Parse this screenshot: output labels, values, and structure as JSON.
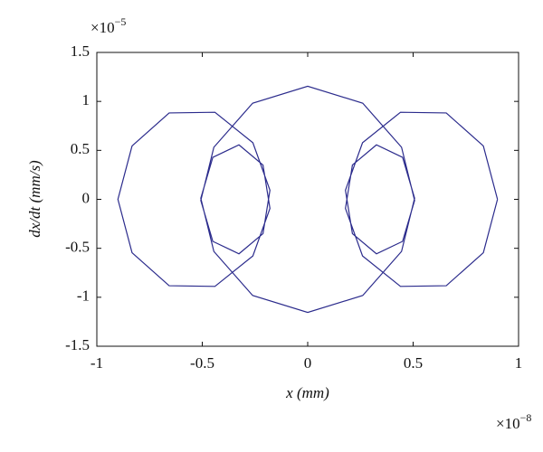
{
  "chart_data": {
    "type": "line",
    "xlabel": "x (mm)",
    "ylabel": "dx/dt (mm/s)",
    "x_multiplier": {
      "base": "×10",
      "power": "−8"
    },
    "y_multiplier": {
      "base": "×10",
      "power": "−5"
    },
    "xlim": [
      -1,
      1
    ],
    "ylim": [
      -1.5,
      1.5
    ],
    "xticks": [
      -1,
      -0.5,
      0,
      0.5,
      1
    ],
    "yticks": [
      -1.5,
      -1,
      -0.5,
      0,
      0.5,
      1,
      1.5
    ],
    "grid": false,
    "series": [
      {
        "color": "#2b2b8c",
        "x": [
          0.9,
          0.833,
          0.657,
          0.44,
          0.26,
          0.179,
          0.212,
          0.326,
          0.45,
          0.507,
          0.445,
          0.261,
          0,
          -0.261,
          -0.445,
          -0.507,
          -0.45,
          -0.326,
          -0.212,
          -0.179,
          -0.26,
          -0.44,
          -0.657,
          -0.833,
          -0.9,
          -0.833,
          -0.657,
          -0.44,
          -0.26,
          -0.179,
          -0.212,
          -0.326,
          -0.45,
          -0.507,
          -0.445,
          -0.261,
          0,
          0.261,
          0.445,
          0.507,
          0.45,
          0.326,
          0.212,
          0.179,
          0.26,
          0.44,
          0.657,
          0.833,
          0.9
        ],
        "values": [
          0,
          -0.545,
          -0.882,
          -0.889,
          -0.578,
          -0.093,
          0.35,
          0.556,
          0.429,
          0.011,
          -0.532,
          -0.982,
          -1.155,
          -0.982,
          -0.532,
          0.011,
          0.429,
          0.556,
          0.35,
          -0.093,
          -0.578,
          -0.889,
          -0.882,
          -0.545,
          0,
          0.545,
          0.882,
          0.889,
          0.578,
          0.093,
          -0.35,
          -0.556,
          -0.429,
          -0.011,
          0.532,
          0.982,
          1.155,
          0.982,
          0.532,
          -0.011,
          -0.429,
          -0.556,
          -0.35,
          0.093,
          0.578,
          0.889,
          0.882,
          0.545,
          0
        ]
      }
    ]
  }
}
